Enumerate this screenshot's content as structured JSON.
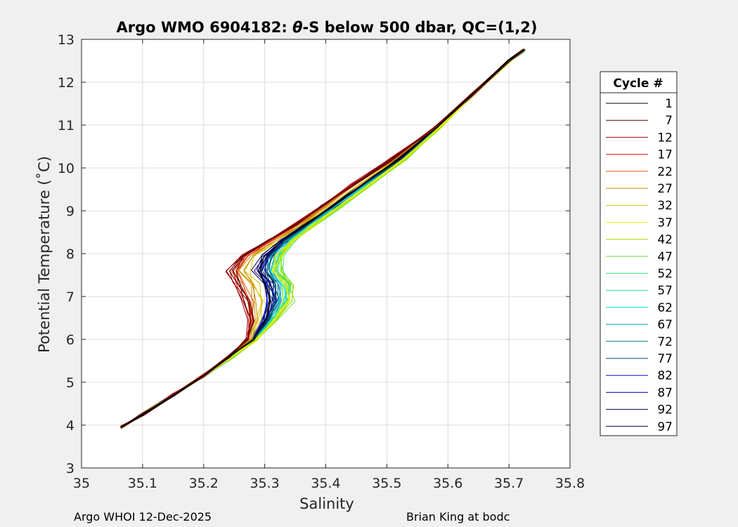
{
  "chart_data": {
    "type": "line",
    "title_prefix": "Argo WMO 6904182: ",
    "title_theta": "θ",
    "title_suffix": "-S below 500 dbar,  QC=(1,2)",
    "xlabel": "Salinity",
    "ylabel": "Potential Temperature (˚C)",
    "xlim": [
      35,
      35.8
    ],
    "ylim": [
      3,
      13
    ],
    "xticks": [
      35,
      35.1,
      35.2,
      35.3,
      35.4,
      35.5,
      35.6,
      35.7,
      35.8
    ],
    "xtick_labels": [
      "35",
      "35.1",
      "35.2",
      "35.3",
      "35.4",
      "35.5",
      "35.6",
      "35.7",
      "35.8"
    ],
    "yticks": [
      3,
      4,
      5,
      6,
      7,
      8,
      9,
      10,
      11,
      12,
      13
    ],
    "ytick_labels": [
      "3",
      "4",
      "5",
      "6",
      "7",
      "8",
      "9",
      "10",
      "11",
      "12",
      "13"
    ],
    "grid": true,
    "legend": {
      "title": "Cycle #",
      "placement": "right",
      "entries": [
        {
          "label": "1",
          "color": "#000000"
        },
        {
          "label": "7",
          "color": "#5a0000"
        },
        {
          "label": "12",
          "color": "#a00000"
        },
        {
          "label": "17",
          "color": "#e01010"
        },
        {
          "label": "22",
          "color": "#e85a10"
        },
        {
          "label": "27",
          "color": "#c88a00"
        },
        {
          "label": "32",
          "color": "#d8c000"
        },
        {
          "label": "37",
          "color": "#f0f000"
        },
        {
          "label": "42",
          "color": "#a8e000"
        },
        {
          "label": "47",
          "color": "#70e040"
        },
        {
          "label": "52",
          "color": "#30e070"
        },
        {
          "label": "57",
          "color": "#20e0b0"
        },
        {
          "label": "62",
          "color": "#00e0e0"
        },
        {
          "label": "67",
          "color": "#00b0c0"
        },
        {
          "label": "72",
          "color": "#007080"
        },
        {
          "label": "77",
          "color": "#004070"
        },
        {
          "label": "82",
          "color": "#0010d0"
        },
        {
          "label": "87",
          "color": "#0000b0"
        },
        {
          "label": "92",
          "color": "#000070"
        },
        {
          "label": "97",
          "color": "#000040"
        }
      ]
    },
    "series_shape": {
      "points": [
        [
          35.065,
          3.95
        ],
        [
          35.1,
          4.25
        ],
        [
          35.15,
          4.7
        ],
        [
          35.2,
          5.15
        ],
        [
          35.245,
          5.6
        ],
        [
          35.28,
          6.0
        ],
        [
          35.3,
          6.45
        ],
        [
          35.31,
          6.9
        ],
        [
          35.305,
          7.3
        ],
        [
          35.29,
          7.6
        ],
        [
          35.3,
          7.95
        ],
        [
          35.33,
          8.3
        ],
        [
          35.37,
          8.7
        ],
        [
          35.41,
          9.1
        ],
        [
          35.46,
          9.6
        ],
        [
          35.52,
          10.2
        ],
        [
          35.58,
          10.9
        ],
        [
          35.64,
          11.7
        ],
        [
          35.7,
          12.5
        ],
        [
          35.725,
          12.75
        ]
      ],
      "mid_band_offsets": [
        {
          "cycle": "1",
          "ds": 0.0
        },
        {
          "cycle": "7",
          "ds": -0.045
        },
        {
          "cycle": "12",
          "ds": -0.05
        },
        {
          "cycle": "17",
          "ds": -0.045
        },
        {
          "cycle": "22",
          "ds": -0.04
        },
        {
          "cycle": "27",
          "ds": -0.03
        },
        {
          "cycle": "32",
          "ds": -0.02
        },
        {
          "cycle": "37",
          "ds": 0.03
        },
        {
          "cycle": "42",
          "ds": 0.035
        },
        {
          "cycle": "47",
          "ds": 0.04
        },
        {
          "cycle": "52",
          "ds": 0.035
        },
        {
          "cycle": "57",
          "ds": 0.03
        },
        {
          "cycle": "62",
          "ds": 0.025
        },
        {
          "cycle": "67",
          "ds": 0.02
        },
        {
          "cycle": "72",
          "ds": 0.015
        },
        {
          "cycle": "77",
          "ds": 0.01
        },
        {
          "cycle": "82",
          "ds": 0.0
        },
        {
          "cycle": "87",
          "ds": 0.005
        },
        {
          "cycle": "92",
          "ds": -0.005
        },
        {
          "cycle": "97",
          "ds": 0.01
        }
      ]
    }
  },
  "footer": {
    "left": "Argo WHOI 12-Dec-2025",
    "right": "Brian King at bodc"
  }
}
